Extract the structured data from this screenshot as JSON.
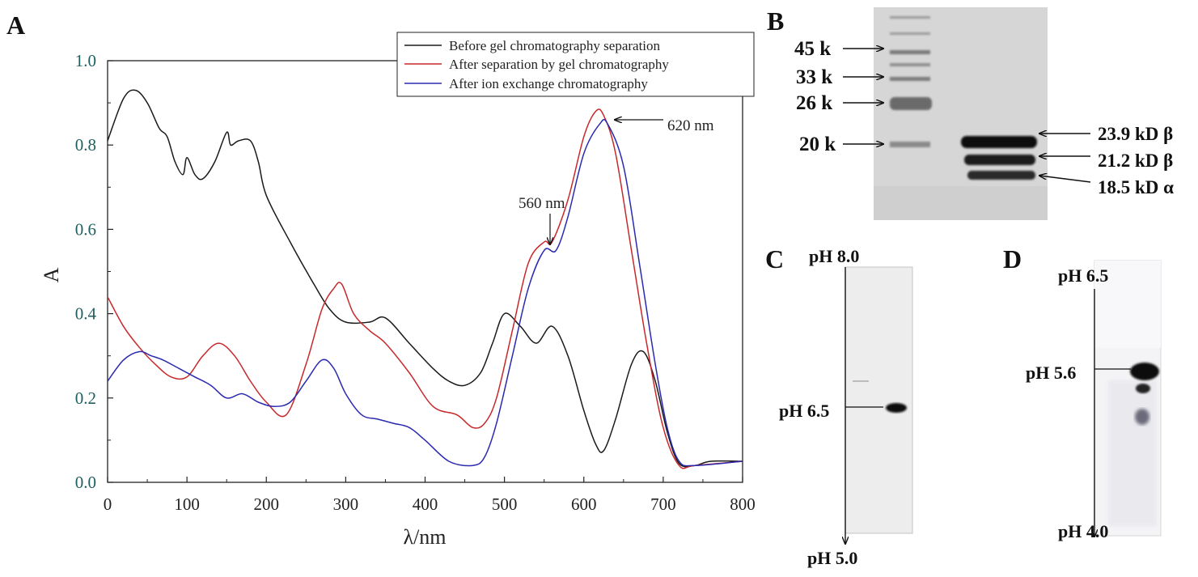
{
  "panels": {
    "a_letter": "A",
    "b_letter": "B",
    "c_letter": "C",
    "d_letter": "D"
  },
  "chart_data": {
    "type": "line",
    "title": "",
    "xlabel": "λ/nm",
    "ylabel": "A",
    "xlim": [
      0,
      800
    ],
    "ylim": [
      0,
      1.0
    ],
    "xticks": [
      "0",
      "100",
      "200",
      "300",
      "400",
      "500",
      "600",
      "700",
      "800"
    ],
    "yticks": [
      "0.0",
      "0.2",
      "0.4",
      "0.6",
      "0.8",
      "1.0"
    ],
    "legend_position": "top-right",
    "series": [
      {
        "name": "Before gel chromatography separation",
        "color": "#1a1a1a",
        "x": [
          0,
          20,
          35,
          50,
          65,
          75,
          85,
          95,
          100,
          110,
          120,
          135,
          150,
          155,
          165,
          180,
          190,
          200,
          230,
          260,
          280,
          300,
          330,
          350,
          380,
          410,
          430,
          450,
          470,
          485,
          500,
          520,
          540,
          560,
          580,
          600,
          615,
          625,
          640,
          660,
          675,
          690,
          705,
          720,
          740,
          760,
          800
        ],
        "y": [
          0.81,
          0.91,
          0.93,
          0.9,
          0.84,
          0.82,
          0.76,
          0.73,
          0.77,
          0.73,
          0.72,
          0.76,
          0.83,
          0.8,
          0.81,
          0.81,
          0.76,
          0.68,
          0.57,
          0.47,
          0.41,
          0.38,
          0.38,
          0.39,
          0.33,
          0.27,
          0.24,
          0.23,
          0.26,
          0.33,
          0.4,
          0.37,
          0.33,
          0.37,
          0.3,
          0.17,
          0.09,
          0.075,
          0.15,
          0.28,
          0.31,
          0.24,
          0.12,
          0.045,
          0.04,
          0.05,
          0.05
        ]
      },
      {
        "name": "After separation by gel chromatography",
        "color": "#c8282a",
        "x": [
          0,
          20,
          40,
          60,
          80,
          100,
          120,
          140,
          160,
          180,
          200,
          225,
          250,
          270,
          285,
          295,
          310,
          330,
          350,
          380,
          410,
          440,
          460,
          475,
          490,
          510,
          530,
          550,
          560,
          580,
          600,
          615,
          625,
          640,
          660,
          680,
          700,
          720,
          740,
          800
        ],
        "y": [
          0.44,
          0.37,
          0.32,
          0.28,
          0.25,
          0.25,
          0.3,
          0.33,
          0.3,
          0.24,
          0.19,
          0.16,
          0.28,
          0.41,
          0.46,
          0.47,
          0.4,
          0.36,
          0.33,
          0.26,
          0.18,
          0.16,
          0.13,
          0.14,
          0.2,
          0.36,
          0.52,
          0.57,
          0.57,
          0.67,
          0.82,
          0.88,
          0.87,
          0.78,
          0.55,
          0.32,
          0.13,
          0.04,
          0.04,
          0.05
        ]
      },
      {
        "name": "After ion exchange chromatography",
        "color": "#2a2ab0",
        "x": [
          0,
          20,
          40,
          55,
          70,
          90,
          110,
          130,
          150,
          170,
          190,
          210,
          230,
          250,
          270,
          285,
          300,
          320,
          340,
          360,
          380,
          400,
          430,
          460,
          475,
          490,
          510,
          530,
          550,
          565,
          580,
          600,
          620,
          630,
          650,
          670,
          690,
          705,
          720,
          740,
          800
        ],
        "y": [
          0.24,
          0.29,
          0.31,
          0.3,
          0.29,
          0.27,
          0.25,
          0.23,
          0.2,
          0.21,
          0.19,
          0.18,
          0.19,
          0.24,
          0.29,
          0.27,
          0.21,
          0.16,
          0.15,
          0.14,
          0.13,
          0.1,
          0.05,
          0.04,
          0.06,
          0.14,
          0.3,
          0.46,
          0.55,
          0.55,
          0.63,
          0.78,
          0.85,
          0.85,
          0.75,
          0.52,
          0.28,
          0.13,
          0.05,
          0.04,
          0.05
        ]
      }
    ],
    "annotations": [
      {
        "text": "620 nm",
        "x": 625,
        "y": 0.85
      },
      {
        "text": "560 nm",
        "x": 560,
        "y": 0.55
      }
    ]
  },
  "gel_b": {
    "markers": [
      "45 k",
      "33 k",
      "26 k",
      "20 k"
    ],
    "bands": [
      "23.9 kD β",
      "21.2 kD β",
      "18.5 kD α"
    ]
  },
  "gel_c": {
    "top": "pH 8.0",
    "mid": "pH 6.5",
    "bottom": "pH 5.0"
  },
  "gel_d": {
    "top": "pH 6.5",
    "mid": "pH 5.6",
    "bottom": "pH 4.0"
  }
}
